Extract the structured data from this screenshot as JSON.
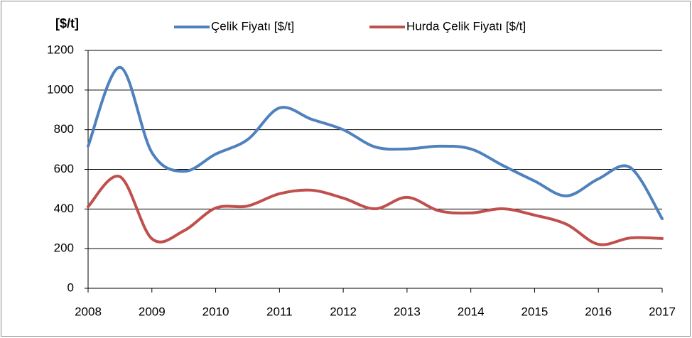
{
  "chart_data": {
    "type": "line",
    "y_label": "[$/t]",
    "x": [
      2008,
      2008.5,
      2009,
      2009.5,
      2010,
      2010.5,
      2011,
      2011.5,
      2012,
      2012.5,
      2013,
      2013.5,
      2014,
      2014.5,
      2015,
      2015.5,
      2016,
      2016.5,
      2017
    ],
    "series": [
      {
        "name": "Çelik Fiyatı [$/t]",
        "color": "#4f81bd",
        "values": [
          717,
          1115,
          685,
          590,
          677,
          750,
          910,
          853,
          800,
          713,
          703,
          717,
          703,
          620,
          541,
          466,
          552,
          609,
          351
        ]
      },
      {
        "name": "Hurda Çelik Fiyatı [$/t]",
        "color": "#c0504d",
        "values": [
          412,
          563,
          250,
          290,
          405,
          415,
          477,
          495,
          455,
          401,
          459,
          391,
          380,
          401,
          369,
          323,
          222,
          254,
          251
        ]
      }
    ],
    "xlim": [
      2008,
      2017
    ],
    "xticks": [
      2008,
      2009,
      2010,
      2011,
      2012,
      2013,
      2014,
      2015,
      2016,
      2017
    ],
    "ylim": [
      0,
      1200
    ],
    "yticks": [
      0,
      200,
      400,
      600,
      800,
      1000,
      1200
    ],
    "grid": true,
    "legend": "top"
  }
}
